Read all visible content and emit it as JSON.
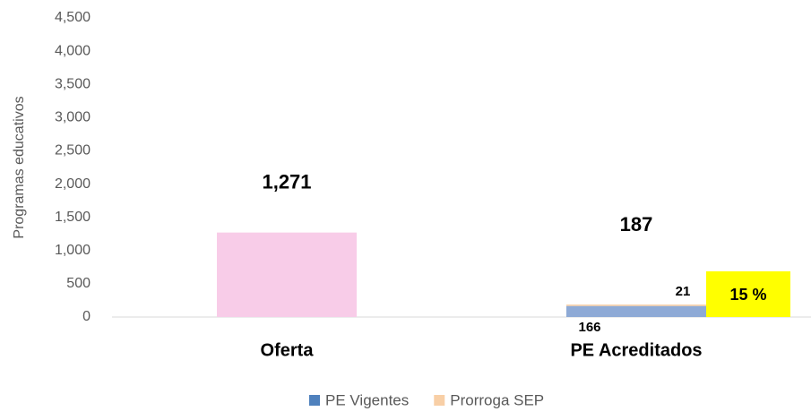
{
  "chart_data": {
    "type": "stacked_bar",
    "y_label": "Programas educativos",
    "categories": [
      "Oferta",
      "PE Acreditados"
    ],
    "series": [
      {
        "color": "#f8cce8",
        "values": [
          1271,
          null
        ]
      },
      {
        "name": "PE Vigentes",
        "color": "#8eaad6",
        "values": [
          null,
          166
        ]
      },
      {
        "name": "Prorroga SEP",
        "color": "#f8cfa6",
        "values": [
          null,
          21
        ]
      }
    ],
    "totals": [
      1271,
      187
    ],
    "total_labels": [
      "1,271",
      "187"
    ],
    "annotation": {
      "text": "15 %",
      "color": "#ffff00"
    },
    "legend_colors": [
      "#4f81bd",
      "#f8cfa6"
    ],
    "ylim": [
      0,
      4500
    ],
    "yticks": [
      0,
      500,
      {
        "value": 1000,
        "label": "1,000"
      },
      {
        "value": 1500,
        "label": "1,500"
      },
      {
        "value": 2000,
        "label": "2,000"
      },
      {
        "value": 2500,
        "label": "2,500"
      },
      {
        "value": 3000,
        "label": "3,000"
      },
      {
        "value": 3500,
        "label": "3,500"
      },
      {
        "value": 4000,
        "label": "4,000"
      },
      {
        "value": 4500,
        "label": "4,500"
      }
    ],
    "legend": "bottom"
  }
}
